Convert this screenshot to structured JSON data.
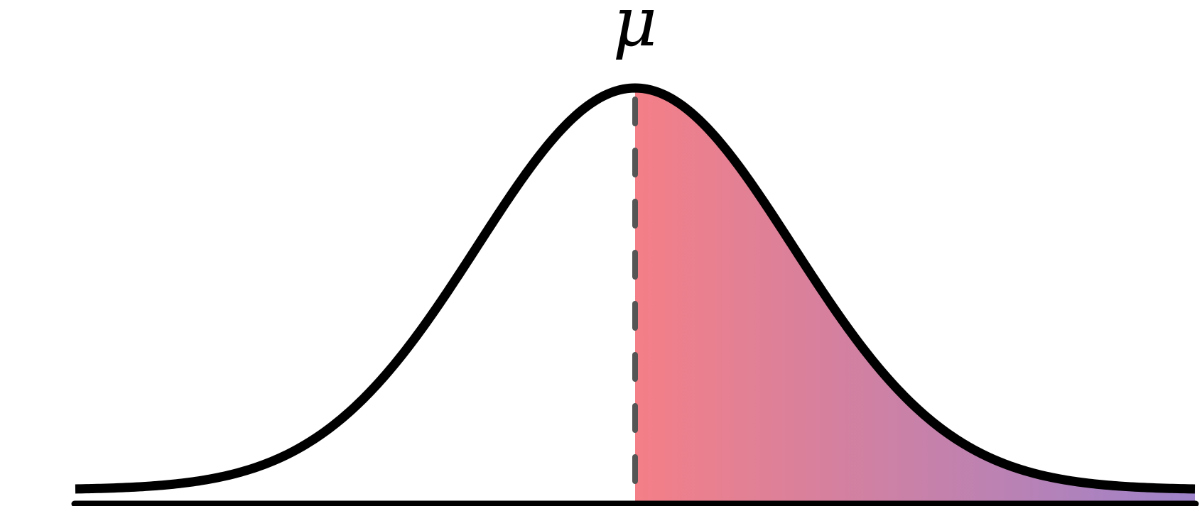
{
  "figure": {
    "label": "μ"
  },
  "colors": {
    "curve": "#000000",
    "axis": "#000000",
    "mean_line": "#555555",
    "fill_start": "#f47f87",
    "fill_end": "#9d83ca",
    "background": "#ffffff"
  },
  "distribution": {
    "type": "normal",
    "mean": 0,
    "std": 1,
    "x_range": [
      -3.55,
      3.55
    ],
    "shaded_region": "x >= mean",
    "mean_line_style": "dashed"
  }
}
